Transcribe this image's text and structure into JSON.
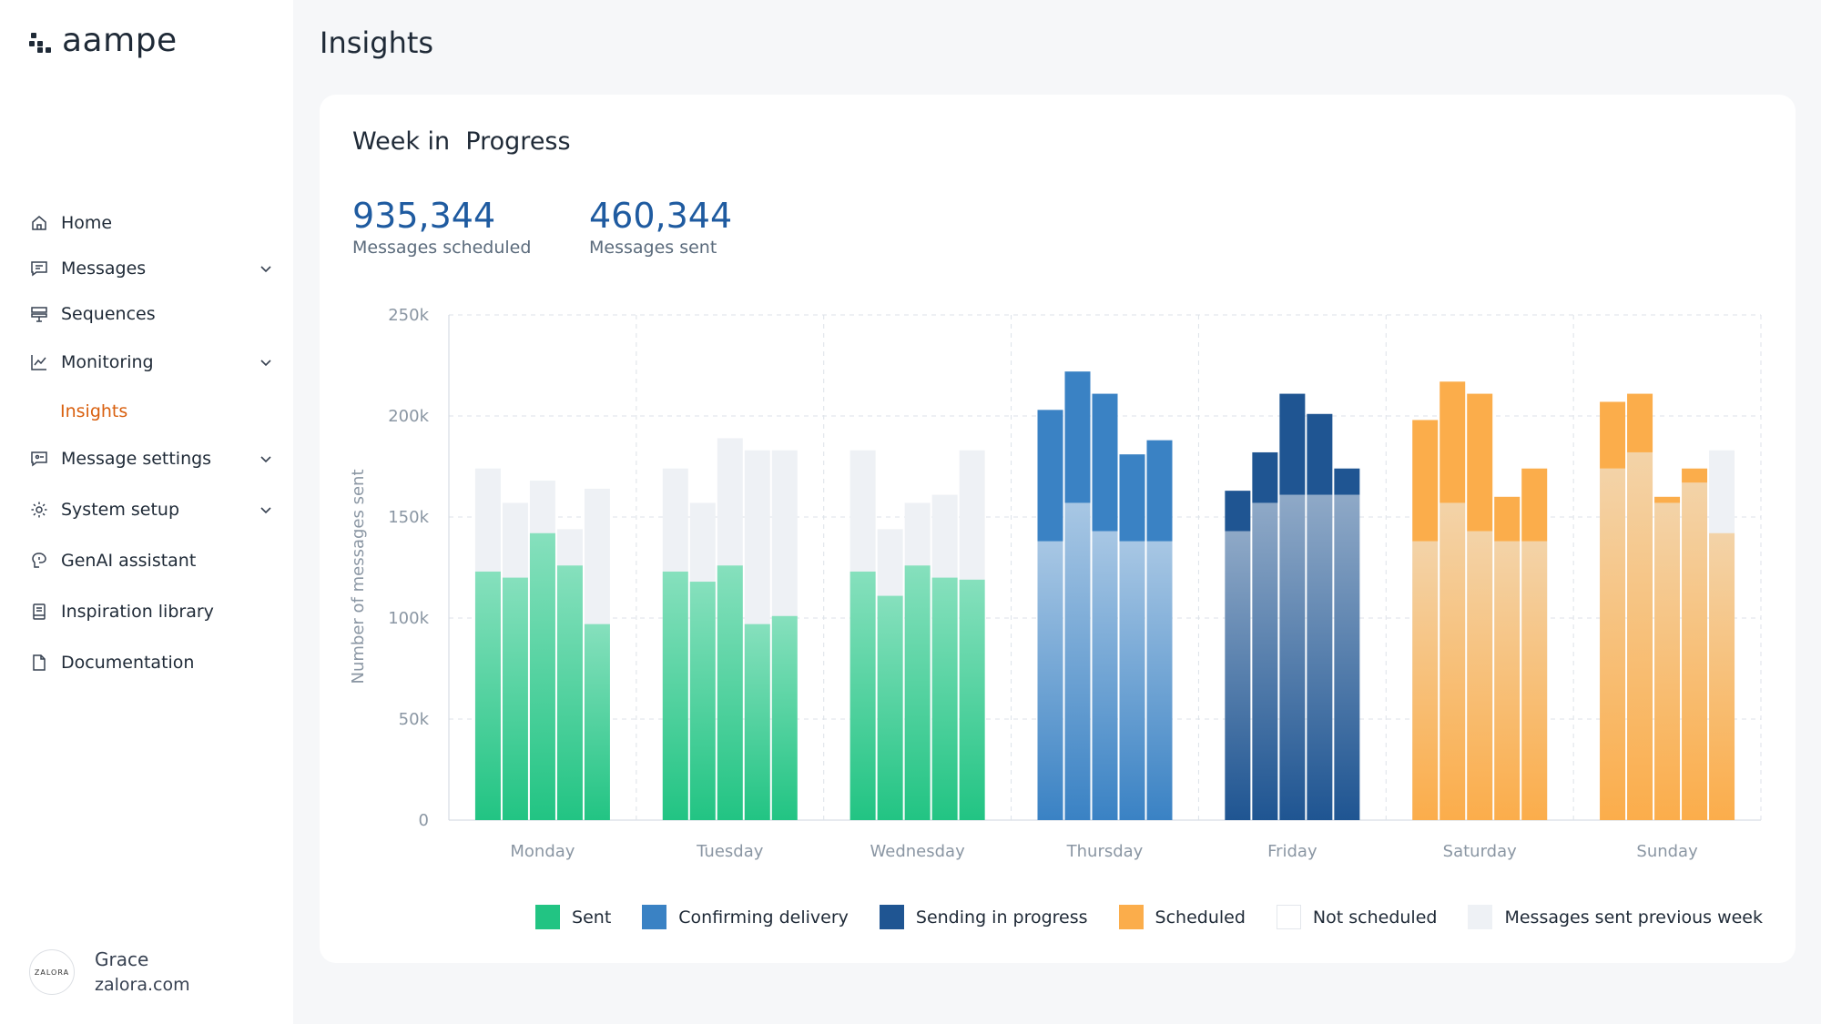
{
  "app": {
    "logo_text": "aampe"
  },
  "sidebar": {
    "items": [
      {
        "label": "Home",
        "icon": "home-icon",
        "chevron": false
      },
      {
        "label": "Messages",
        "icon": "message-icon",
        "chevron": true
      },
      {
        "label": "Sequences",
        "icon": "sequences-icon",
        "chevron": false
      },
      {
        "label": "Monitoring",
        "icon": "chart-line-icon",
        "chevron": true
      },
      {
        "label": "Message settings",
        "icon": "message-settings-icon",
        "chevron": true
      },
      {
        "label": "System setup",
        "icon": "gear-icon",
        "chevron": true
      },
      {
        "label": "GenAI assistant",
        "icon": "ai-brain-icon",
        "chevron": false
      },
      {
        "label": "Inspiration library",
        "icon": "book-icon",
        "chevron": false
      },
      {
        "label": "Documentation",
        "icon": "document-icon",
        "chevron": false
      }
    ],
    "active_sub_item": "Insights"
  },
  "user": {
    "name": "Grace",
    "org": "zalora.com",
    "avatar_text": "ZALORA"
  },
  "page": {
    "title": "Insights"
  },
  "card": {
    "title": "Week in  Progress",
    "stats": [
      {
        "value": "935,344",
        "label": "Messages scheduled"
      },
      {
        "value": "460,344",
        "label": "Messages sent"
      }
    ]
  },
  "chart_data": {
    "type": "bar",
    "stacked": true,
    "ylabel": "Number of messages sent",
    "ylim": [
      0,
      250000
    ],
    "yticks": [
      0,
      50000,
      100000,
      150000,
      200000,
      250000
    ],
    "ytick_labels": [
      "0",
      "50k",
      "100k",
      "150k",
      "200k",
      "250k"
    ],
    "grid": true,
    "legend_position": "bottom-right",
    "categories": [
      "Monday",
      "Tuesday",
      "Wednesday",
      "Thursday",
      "Friday",
      "Saturday",
      "Sunday"
    ],
    "colors": {
      "Sent": "#22c483",
      "Confirming delivery": "#3a82c4",
      "Sending in progress": "#1f5592",
      "Scheduled": "#fbad4b",
      "Not scheduled": "#ffffff",
      "Messages sent previous week": "#eef1f5"
    },
    "legend": [
      "Sent",
      "Confirming delivery",
      "Sending in progress",
      "Scheduled",
      "Not scheduled",
      "Messages sent previous week"
    ],
    "days": [
      {
        "day": "Monday",
        "status": "Sent",
        "bars": [
          {
            "prev_week": 174000,
            "current": 123000
          },
          {
            "prev_week": 157000,
            "current": 120000
          },
          {
            "prev_week": 168000,
            "current": 142000
          },
          {
            "prev_week": 144000,
            "current": 126000
          },
          {
            "prev_week": 164000,
            "current": 97000
          }
        ]
      },
      {
        "day": "Tuesday",
        "status": "Sent",
        "bars": [
          {
            "prev_week": 174000,
            "current": 123000
          },
          {
            "prev_week": 157000,
            "current": 118000
          },
          {
            "prev_week": 189000,
            "current": 126000
          },
          {
            "prev_week": 183000,
            "current": 97000
          },
          {
            "prev_week": 183000,
            "current": 101000
          }
        ]
      },
      {
        "day": "Wednesday",
        "status": "Sent",
        "bars": [
          {
            "prev_week": 183000,
            "current": 123000
          },
          {
            "prev_week": 144000,
            "current": 111000
          },
          {
            "prev_week": 157000,
            "current": 126000
          },
          {
            "prev_week": 161000,
            "current": 120000
          },
          {
            "prev_week": 183000,
            "current": 119000
          }
        ]
      },
      {
        "day": "Thursday",
        "status": "Confirming delivery",
        "bars": [
          {
            "prev_week": 138000,
            "current": 203000
          },
          {
            "prev_week": 157000,
            "current": 222000
          },
          {
            "prev_week": 143000,
            "current": 211000
          },
          {
            "prev_week": 138000,
            "current": 181000
          },
          {
            "prev_week": 138000,
            "current": 188000
          }
        ]
      },
      {
        "day": "Friday",
        "status": "Sending in progress",
        "bars": [
          {
            "prev_week": 143000,
            "current": 163000
          },
          {
            "prev_week": 157000,
            "current": 182000
          },
          {
            "prev_week": 161000,
            "current": 211000
          },
          {
            "prev_week": 161000,
            "current": 201000
          },
          {
            "prev_week": 161000,
            "current": 174000
          }
        ]
      },
      {
        "day": "Saturday",
        "status": "Scheduled",
        "bars": [
          {
            "prev_week": 138000,
            "current": 198000
          },
          {
            "prev_week": 157000,
            "current": 217000
          },
          {
            "prev_week": 143000,
            "current": 211000
          },
          {
            "prev_week": 138000,
            "current": 160000
          },
          {
            "prev_week": 138000,
            "current": 174000
          }
        ]
      },
      {
        "day": "Sunday",
        "status": "Scheduled",
        "bars": [
          {
            "prev_week": 174000,
            "current": 207000
          },
          {
            "prev_week": 182000,
            "current": 211000
          },
          {
            "prev_week": 157000,
            "current": 160000
          },
          {
            "prev_week": 167000,
            "current": 174000
          },
          {
            "prev_week": 183000,
            "current": 142000
          }
        ]
      }
    ]
  }
}
